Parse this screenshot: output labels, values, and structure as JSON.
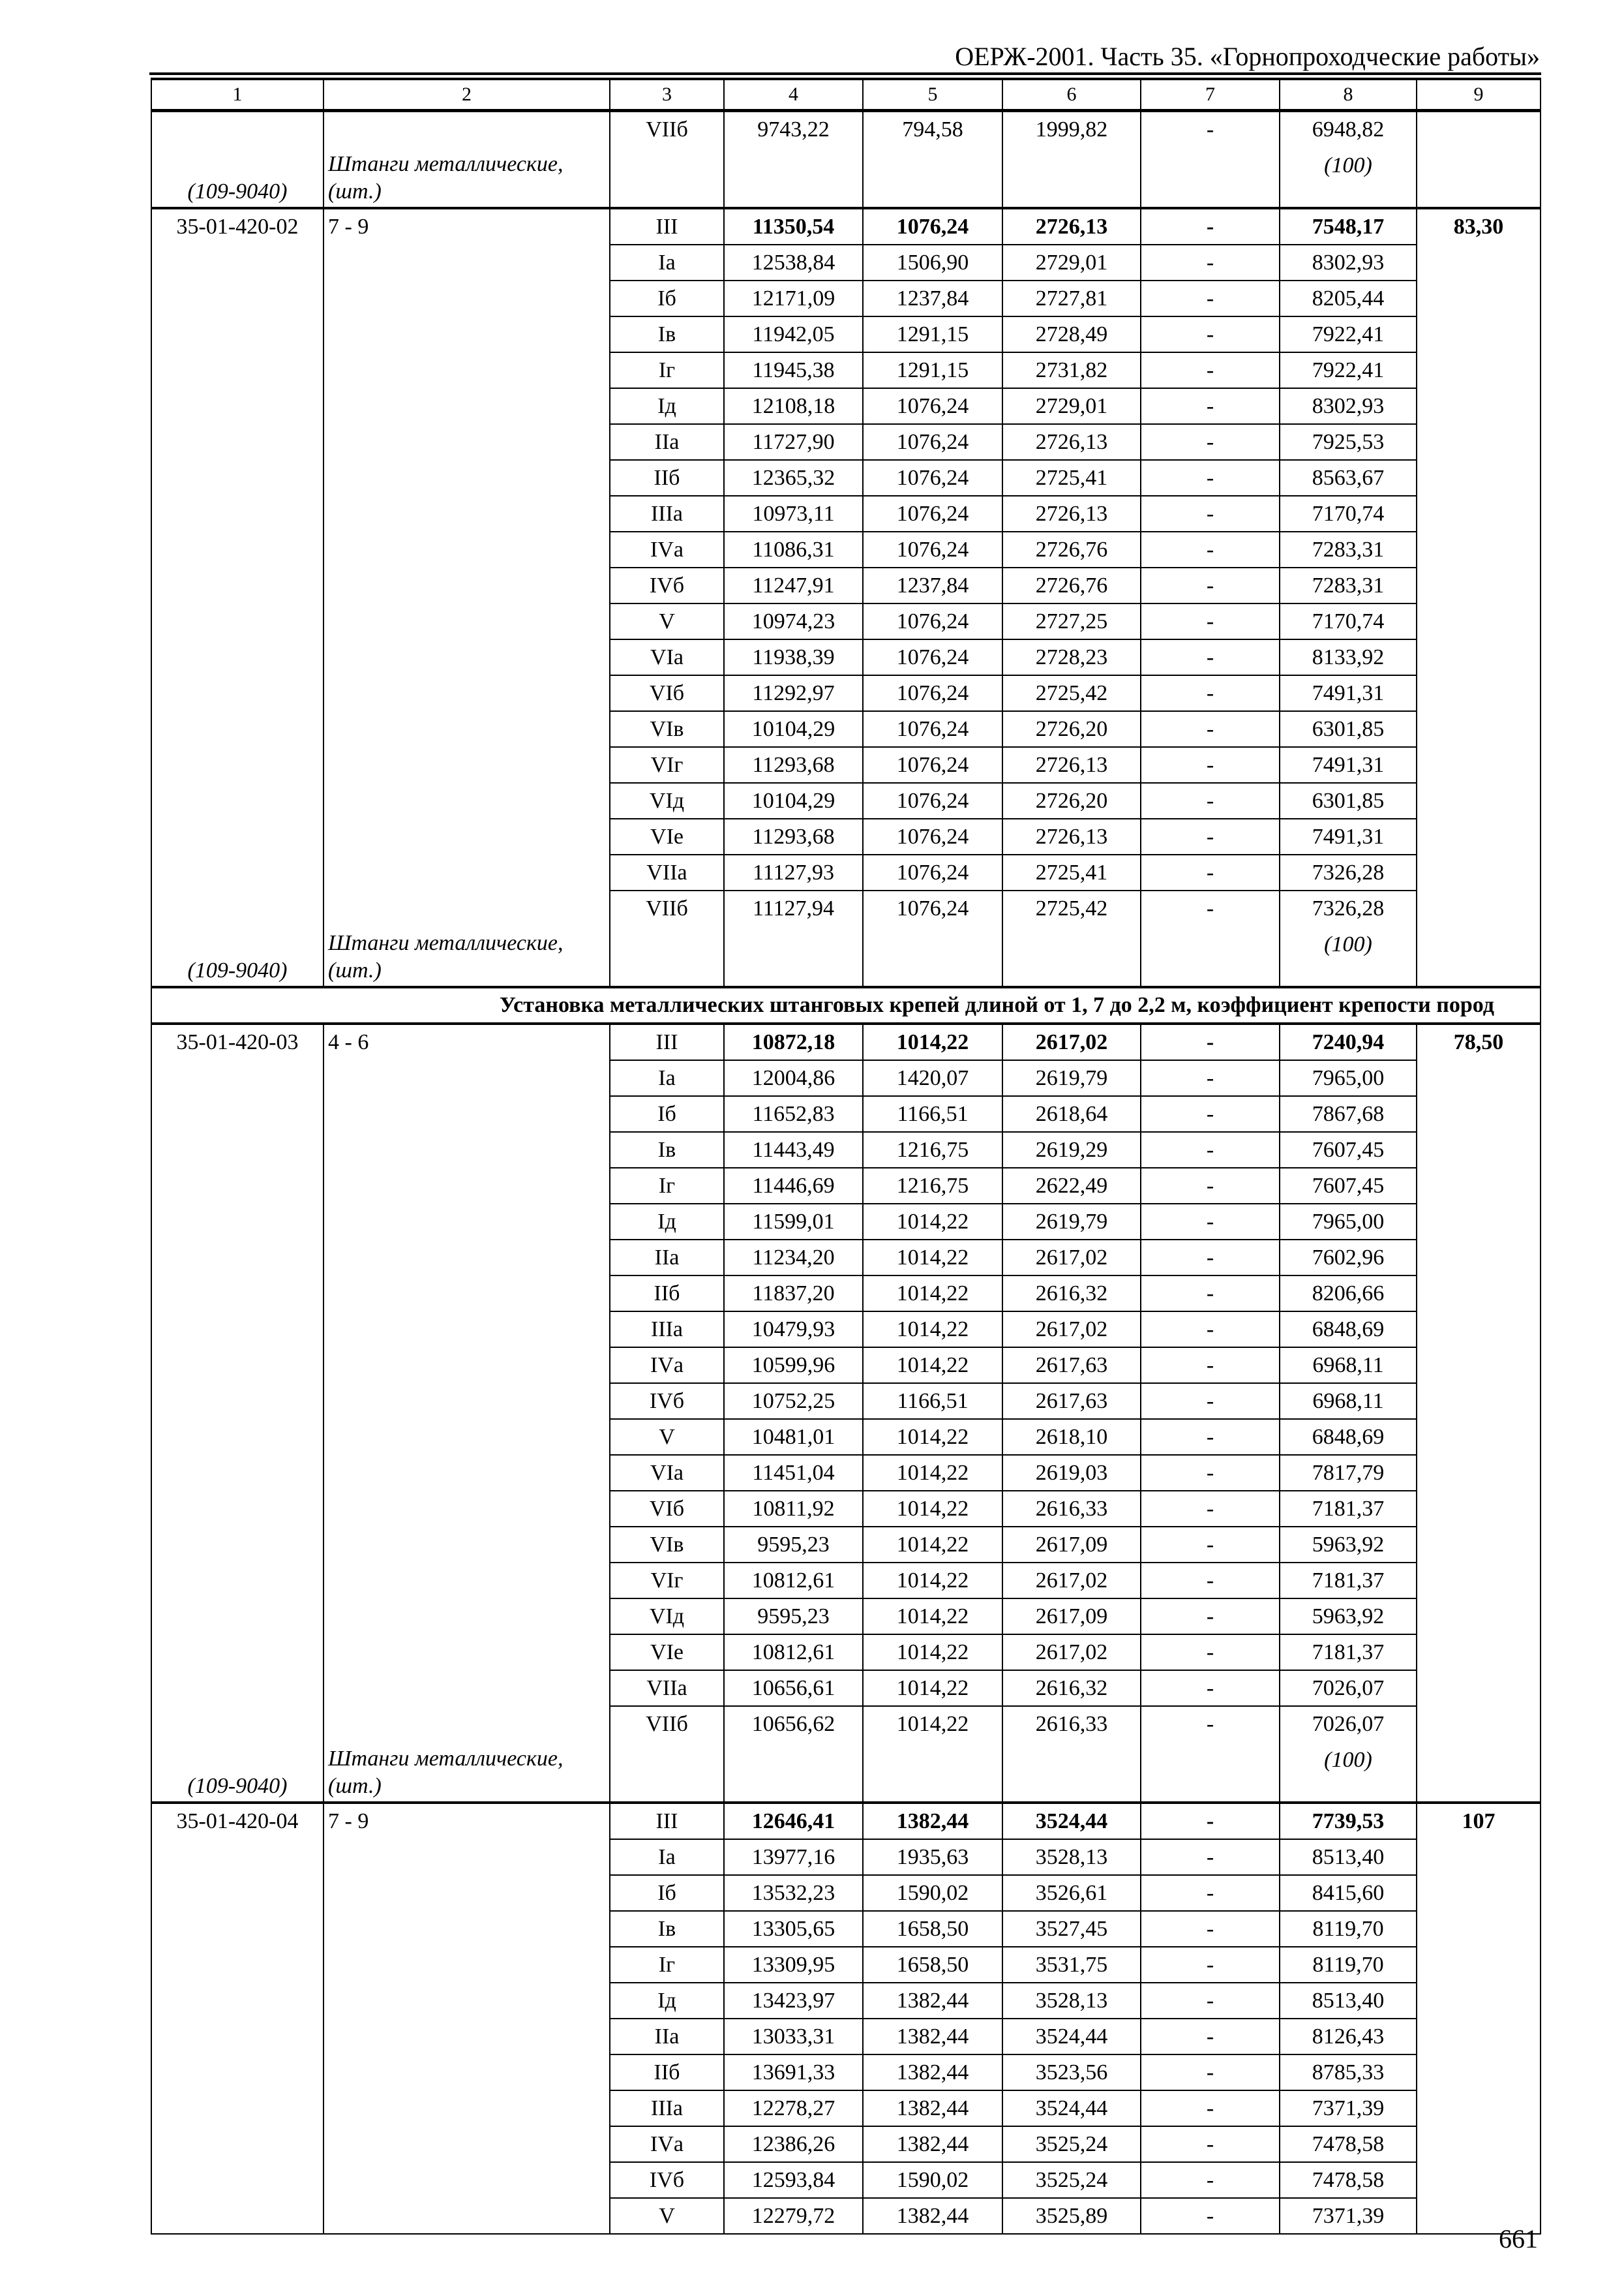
{
  "header": {
    "title": "ОЕРЖ-2001. Часть 35. «Горнопроходческие работы»"
  },
  "column_numbers": [
    "1",
    "2",
    "3",
    "4",
    "5",
    "6",
    "7",
    "8",
    "9"
  ],
  "blocks": [
    {
      "code": "",
      "range": "",
      "total": "",
      "resource": {
        "code": "(109-9040)",
        "name": "Штанги металлические,",
        "unit": "(шт.)",
        "quantity": "(100)"
      },
      "rows": [
        [
          "VIIб",
          "9743,22",
          "794,58",
          "1999,82",
          "-",
          "6948,82"
        ]
      ]
    },
    {
      "code": "35-01-420-02",
      "range": "7 - 9",
      "total": "83,30",
      "resource": {
        "code": "(109-9040)",
        "name": "Штанги металлические,",
        "unit": "(шт.)",
        "quantity": "(100)"
      },
      "rows": [
        [
          "III",
          "11350,54",
          "1076,24",
          "2726,13",
          "-",
          "7548,17"
        ],
        [
          "Iа",
          "12538,84",
          "1506,90",
          "2729,01",
          "-",
          "8302,93"
        ],
        [
          "Iб",
          "12171,09",
          "1237,84",
          "2727,81",
          "-",
          "8205,44"
        ],
        [
          "Iв",
          "11942,05",
          "1291,15",
          "2728,49",
          "-",
          "7922,41"
        ],
        [
          "Iг",
          "11945,38",
          "1291,15",
          "2731,82",
          "-",
          "7922,41"
        ],
        [
          "Iд",
          "12108,18",
          "1076,24",
          "2729,01",
          "-",
          "8302,93"
        ],
        [
          "IIа",
          "11727,90",
          "1076,24",
          "2726,13",
          "-",
          "7925,53"
        ],
        [
          "IIб",
          "12365,32",
          "1076,24",
          "2725,41",
          "-",
          "8563,67"
        ],
        [
          "IIIа",
          "10973,11",
          "1076,24",
          "2726,13",
          "-",
          "7170,74"
        ],
        [
          "IVа",
          "11086,31",
          "1076,24",
          "2726,76",
          "-",
          "7283,31"
        ],
        [
          "IVб",
          "11247,91",
          "1237,84",
          "2726,76",
          "-",
          "7283,31"
        ],
        [
          "V",
          "10974,23",
          "1076,24",
          "2727,25",
          "-",
          "7170,74"
        ],
        [
          "VIа",
          "11938,39",
          "1076,24",
          "2728,23",
          "-",
          "8133,92"
        ],
        [
          "VIб",
          "11292,97",
          "1076,24",
          "2725,42",
          "-",
          "7491,31"
        ],
        [
          "VIв",
          "10104,29",
          "1076,24",
          "2726,20",
          "-",
          "6301,85"
        ],
        [
          "VIг",
          "11293,68",
          "1076,24",
          "2726,13",
          "-",
          "7491,31"
        ],
        [
          "VIд",
          "10104,29",
          "1076,24",
          "2726,20",
          "-",
          "6301,85"
        ],
        [
          "VIе",
          "11293,68",
          "1076,24",
          "2726,13",
          "-",
          "7491,31"
        ],
        [
          "VIIа",
          "11127,93",
          "1076,24",
          "2725,41",
          "-",
          "7326,28"
        ],
        [
          "VIIб",
          "11127,94",
          "1076,24",
          "2725,42",
          "-",
          "7326,28"
        ]
      ]
    },
    {
      "section_heading": "Установка металлических штанговых крепей длиной от 1, 7 до 2,2 м, коэффициент крепости пород",
      "code": "35-01-420-03",
      "range": "4 - 6",
      "total": "78,50",
      "resource": {
        "code": "(109-9040)",
        "name": "Штанги металлические,",
        "unit": "(шт.)",
        "quantity": "(100)"
      },
      "rows": [
        [
          "III",
          "10872,18",
          "1014,22",
          "2617,02",
          "-",
          "7240,94"
        ],
        [
          "Iа",
          "12004,86",
          "1420,07",
          "2619,79",
          "-",
          "7965,00"
        ],
        [
          "Iб",
          "11652,83",
          "1166,51",
          "2618,64",
          "-",
          "7867,68"
        ],
        [
          "Iв",
          "11443,49",
          "1216,75",
          "2619,29",
          "-",
          "7607,45"
        ],
        [
          "Iг",
          "11446,69",
          "1216,75",
          "2622,49",
          "-",
          "7607,45"
        ],
        [
          "Iд",
          "11599,01",
          "1014,22",
          "2619,79",
          "-",
          "7965,00"
        ],
        [
          "IIа",
          "11234,20",
          "1014,22",
          "2617,02",
          "-",
          "7602,96"
        ],
        [
          "IIб",
          "11837,20",
          "1014,22",
          "2616,32",
          "-",
          "8206,66"
        ],
        [
          "IIIа",
          "10479,93",
          "1014,22",
          "2617,02",
          "-",
          "6848,69"
        ],
        [
          "IVа",
          "10599,96",
          "1014,22",
          "2617,63",
          "-",
          "6968,11"
        ],
        [
          "IVб",
          "10752,25",
          "1166,51",
          "2617,63",
          "-",
          "6968,11"
        ],
        [
          "V",
          "10481,01",
          "1014,22",
          "2618,10",
          "-",
          "6848,69"
        ],
        [
          "VIа",
          "11451,04",
          "1014,22",
          "2619,03",
          "-",
          "7817,79"
        ],
        [
          "VIб",
          "10811,92",
          "1014,22",
          "2616,33",
          "-",
          "7181,37"
        ],
        [
          "VIв",
          "9595,23",
          "1014,22",
          "2617,09",
          "-",
          "5963,92"
        ],
        [
          "VIг",
          "10812,61",
          "1014,22",
          "2617,02",
          "-",
          "7181,37"
        ],
        [
          "VIд",
          "9595,23",
          "1014,22",
          "2617,09",
          "-",
          "5963,92"
        ],
        [
          "VIе",
          "10812,61",
          "1014,22",
          "2617,02",
          "-",
          "7181,37"
        ],
        [
          "VIIа",
          "10656,61",
          "1014,22",
          "2616,32",
          "-",
          "7026,07"
        ],
        [
          "VIIб",
          "10656,62",
          "1014,22",
          "2616,33",
          "-",
          "7026,07"
        ]
      ]
    },
    {
      "code": "35-01-420-04",
      "range": "7 - 9",
      "total": "107",
      "rows": [
        [
          "III",
          "12646,41",
          "1382,44",
          "3524,44",
          "-",
          "7739,53"
        ],
        [
          "Iа",
          "13977,16",
          "1935,63",
          "3528,13",
          "-",
          "8513,40"
        ],
        [
          "Iб",
          "13532,23",
          "1590,02",
          "3526,61",
          "-",
          "8415,60"
        ],
        [
          "Iв",
          "13305,65",
          "1658,50",
          "3527,45",
          "-",
          "8119,70"
        ],
        [
          "Iг",
          "13309,95",
          "1658,50",
          "3531,75",
          "-",
          "8119,70"
        ],
        [
          "Iд",
          "13423,97",
          "1382,44",
          "3528,13",
          "-",
          "8513,40"
        ],
        [
          "IIа",
          "13033,31",
          "1382,44",
          "3524,44",
          "-",
          "8126,43"
        ],
        [
          "IIб",
          "13691,33",
          "1382,44",
          "3523,56",
          "-",
          "8785,33"
        ],
        [
          "IIIа",
          "12278,27",
          "1382,44",
          "3524,44",
          "-",
          "7371,39"
        ],
        [
          "IVа",
          "12386,26",
          "1382,44",
          "3525,24",
          "-",
          "7478,58"
        ],
        [
          "IVб",
          "12593,84",
          "1590,02",
          "3525,24",
          "-",
          "7478,58"
        ],
        [
          "V",
          "12279,72",
          "1382,44",
          "3525,89",
          "-",
          "7371,39"
        ]
      ]
    }
  ],
  "page_number": "661"
}
